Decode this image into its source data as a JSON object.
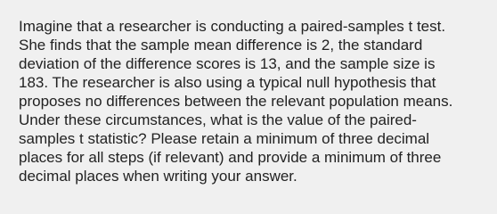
{
  "question": {
    "lines": [
      "Imagine that a researcher is conducting a paired-samples t test.",
      "She finds that the sample mean difference is 2, the standard",
      "deviation of the difference scores is 13, and the sample size is",
      "183. The researcher is also using a typical null hypothesis that",
      "proposes no differences between the relevant population means.",
      "Under these circumstances, what is the value of the paired-",
      "samples t statistic? Please retain a minimum of three decimal",
      "places for all steps (if relevant) and provide a minimum of three",
      "decimal places when writing your answer."
    ]
  }
}
